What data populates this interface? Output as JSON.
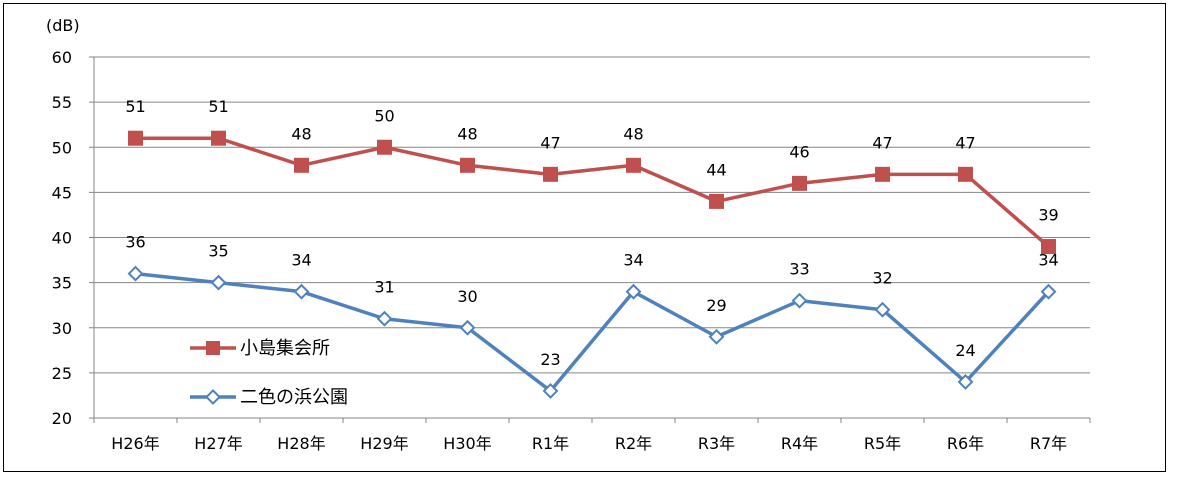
{
  "chart_data": {
    "type": "line",
    "ylabel": "(dB)",
    "ylim": [
      20,
      60
    ],
    "yticks": [
      20,
      25,
      30,
      35,
      40,
      45,
      50,
      55,
      60
    ],
    "categories": [
      "H26年",
      "H27年",
      "H28年",
      "H29年",
      "H30年",
      "R1年",
      "R2年",
      "R3年",
      "R4年",
      "R5年",
      "R6年",
      "R7年"
    ],
    "grid": true,
    "legend_position": "left",
    "series": [
      {
        "name": "小島集会所",
        "values": [
          51,
          51,
          48,
          50,
          48,
          47,
          48,
          44,
          46,
          47,
          47,
          39
        ],
        "color": "#C0504D",
        "marker": "square-filled"
      },
      {
        "name": "二色の浜公園",
        "values": [
          36,
          35,
          34,
          31,
          30,
          23,
          34,
          29,
          33,
          32,
          24,
          34
        ],
        "color": "#4F81BD",
        "marker": "diamond-open"
      }
    ]
  }
}
